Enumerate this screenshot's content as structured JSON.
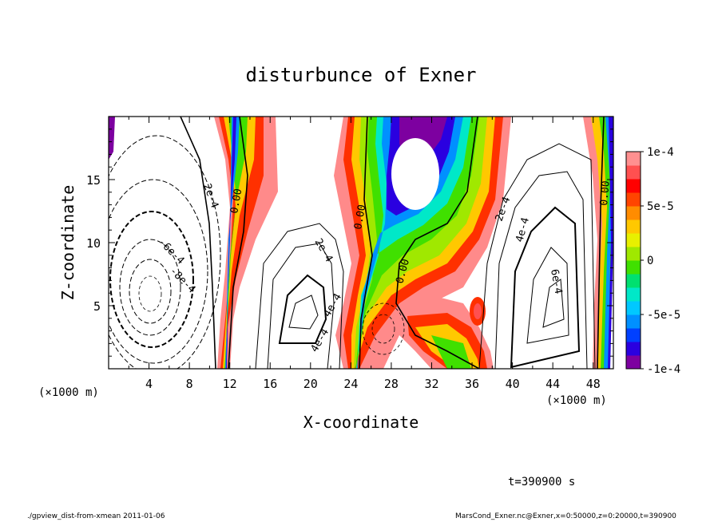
{
  "chart_data": {
    "type": "contour",
    "title": "disturbunce of Exner",
    "xlabel": "X-coordinate",
    "ylabel": "Z-coordinate",
    "x_unit": "(×1000 m)",
    "xlim": [
      0,
      50
    ],
    "ylim": [
      0,
      20
    ],
    "x_ticks": [
      "4",
      "8",
      "12",
      "16",
      "20",
      "24",
      "28",
      "32",
      "36",
      "40",
      "44",
      "48"
    ],
    "y_ticks": [
      "5",
      "10",
      "15"
    ],
    "colorbar": {
      "range": [
        -0.0001,
        0.0001
      ],
      "tick_labels": [
        "1e-4",
        "5e-5",
        "0",
        "-5e-5",
        "-1e-4"
      ],
      "colors": [
        "#7d00a0",
        "#2a00e0",
        "#0040ff",
        "#0090ff",
        "#00c8ff",
        "#00e8c8",
        "#00e070",
        "#40e000",
        "#a0e800",
        "#e8f000",
        "#ffc800",
        "#ff8c00",
        "#ff4400",
        "#ff0000",
        "#ff5050",
        "#ff9090"
      ]
    },
    "contour_labels": [
      "2e-4",
      "0.00",
      "2e-4",
      "0.00",
      "0.00",
      "2e-4",
      "4e-4",
      "0.00",
      "-6e-4",
      "-8e-4",
      "4e-4",
      "6e-4",
      "4e-4"
    ],
    "time_label": "t=390900 s"
  },
  "footer": {
    "left": "./gpview_dist-from-xmean  2011-01-06",
    "right": "MarsCond_Exner.nc@Exner,x=0:50000,z=0:20000,t=390900"
  }
}
